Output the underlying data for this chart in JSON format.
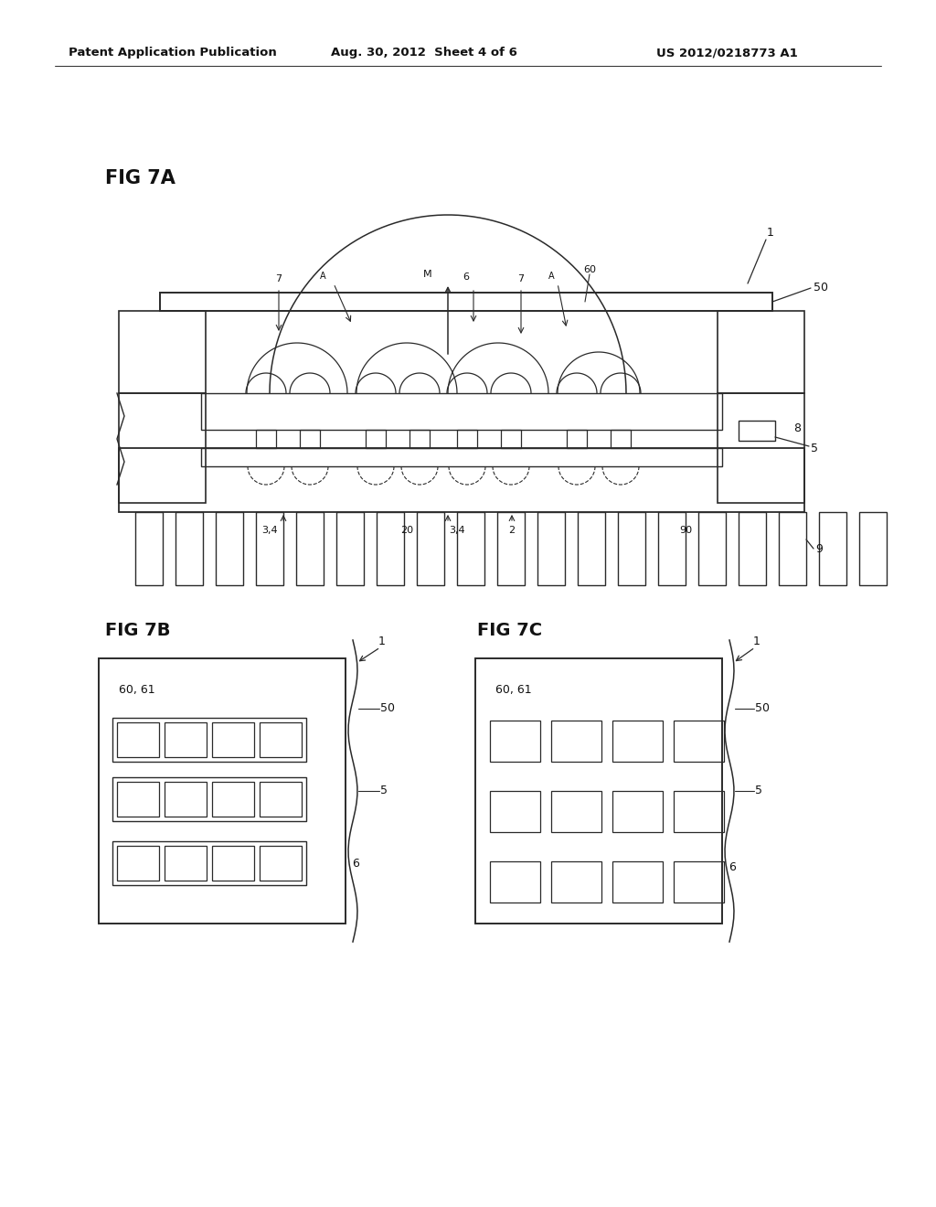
{
  "bg_color": "#ffffff",
  "header_text1": "Patent Application Publication",
  "header_text2": "Aug. 30, 2012  Sheet 4 of 6",
  "header_text3": "US 2012/0218773 A1",
  "fig7a_label": "FIG 7A",
  "fig7b_label": "FIG 7B",
  "fig7c_label": "FIG 7C",
  "line_color": "#2a2a2a",
  "text_color": "#111111"
}
